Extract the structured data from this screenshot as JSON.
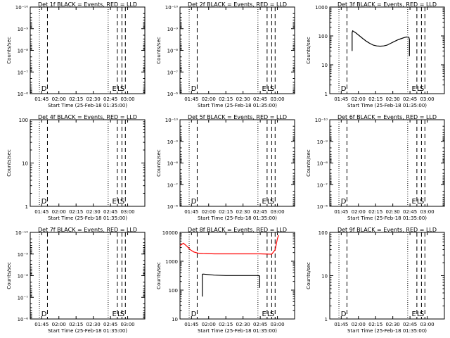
{
  "figure": {
    "background": "#ffffff",
    "axis_color": "#000000"
  },
  "chart_data": [
    {
      "type": "line",
      "title": "Det 1f BLACK = Events, RED = LLD",
      "xlabel": "Start Time (25-Feb-18 01:35:00)",
      "ylabel": "Counts/sec",
      "x_tick_labels": [
        "01:45",
        "02:00",
        "02:15",
        "02:30",
        "02:45",
        "03:00"
      ],
      "x_ticks_min": [
        10,
        25,
        40,
        55,
        70,
        85
      ],
      "xlim_min": [
        0,
        100
      ],
      "yscale": "log",
      "ylim": [
        1e-06,
        1e-10
      ],
      "y_tick_labels": [
        "10⁻⁶",
        "10⁻⁷",
        "10⁻⁸",
        "10⁻⁹",
        "10⁻¹⁰"
      ],
      "y_tick_values": [
        1e-06,
        1e-07,
        1e-08,
        1e-09,
        1e-10
      ],
      "vlines": [
        {
          "x": 8,
          "style": "dotted"
        },
        {
          "x": 15,
          "style": "dashed",
          "label": "D"
        },
        {
          "x": 68,
          "style": "dotted"
        },
        {
          "x": 76,
          "style": "dashed",
          "label": "E"
        },
        {
          "x": 80,
          "style": "dashed",
          "label": "L"
        },
        {
          "x": 83,
          "style": "dashed",
          "label": "S"
        }
      ],
      "series": []
    },
    {
      "type": "line",
      "title": "Det 2f BLACK = Events, RED = LLD",
      "xlabel": "Start Time (25-Feb-18 01:35:00)",
      "ylabel": "Counts/sec",
      "x_tick_labels": [
        "01:45",
        "02:00",
        "02:15",
        "02:30",
        "02:45",
        "03:00"
      ],
      "x_ticks_min": [
        10,
        25,
        40,
        55,
        70,
        85
      ],
      "xlim_min": [
        0,
        100
      ],
      "yscale": "log",
      "ylim": [
        1e-06,
        1e-10
      ],
      "y_tick_labels": [
        "10⁻⁶",
        "10⁻⁷",
        "10⁻⁸",
        "10⁻⁹",
        "10⁻¹⁰"
      ],
      "y_tick_values": [
        1e-06,
        1e-07,
        1e-08,
        1e-09,
        1e-10
      ],
      "vlines": [
        {
          "x": 8,
          "style": "dotted"
        },
        {
          "x": 15,
          "style": "dashed",
          "label": "D"
        },
        {
          "x": 68,
          "style": "dotted"
        },
        {
          "x": 76,
          "style": "dashed",
          "label": "E"
        },
        {
          "x": 80,
          "style": "dashed",
          "label": "L"
        },
        {
          "x": 83,
          "style": "dashed",
          "label": "S"
        }
      ],
      "series": []
    },
    {
      "type": "line",
      "title": "Det 3f BLACK = Events, RED = LLD",
      "xlabel": "Start Time (25-Feb-18 01:35:00)",
      "ylabel": "Counts/sec",
      "x_tick_labels": [
        "01:45",
        "02:00",
        "02:15",
        "02:30",
        "02:45",
        "03:00"
      ],
      "x_ticks_min": [
        10,
        25,
        40,
        55,
        70,
        85
      ],
      "xlim_min": [
        0,
        100
      ],
      "yscale": "log",
      "ylim": [
        1,
        1000
      ],
      "y_tick_labels": [
        "1",
        "10",
        "100",
        "1000"
      ],
      "y_tick_values": [
        1,
        10,
        100,
        1000
      ],
      "vlines": [
        {
          "x": 8,
          "style": "dotted"
        },
        {
          "x": 15,
          "style": "dashed",
          "label": "D"
        },
        {
          "x": 68,
          "style": "dotted"
        },
        {
          "x": 76,
          "style": "dashed",
          "label": "E"
        },
        {
          "x": 80,
          "style": "dashed",
          "label": "L"
        },
        {
          "x": 83,
          "style": "dashed",
          "label": "S"
        }
      ],
      "series": [
        {
          "color": "#000000",
          "x": [
            19.5,
            19.5,
            20,
            23,
            26,
            29,
            32,
            35,
            38,
            41,
            44,
            47,
            50,
            53,
            56,
            59,
            62,
            65,
            67,
            69,
            69.5,
            69.5
          ],
          "y": [
            30,
            130,
            150,
            125,
            100,
            80,
            65,
            55,
            48,
            45,
            44,
            45,
            48,
            55,
            63,
            72,
            80,
            88,
            92,
            90,
            75,
            20
          ]
        }
      ]
    },
    {
      "type": "line",
      "title": "Det 4f BLACK = Events, RED = LLD",
      "xlabel": "Start Time (25-Feb-18 01:35:00)",
      "ylabel": "Counts/sec",
      "x_tick_labels": [
        "01:45",
        "02:00",
        "02:15",
        "02:30",
        "02:45",
        "03:00"
      ],
      "x_ticks_min": [
        10,
        25,
        40,
        55,
        70,
        85
      ],
      "xlim_min": [
        0,
        100
      ],
      "yscale": "log",
      "ylim": [
        1,
        100
      ],
      "y_tick_labels": [
        "1",
        "10",
        "100"
      ],
      "y_tick_values": [
        1,
        10,
        100
      ],
      "vlines": [
        {
          "x": 8,
          "style": "dotted"
        },
        {
          "x": 15,
          "style": "dashed",
          "label": "D"
        },
        {
          "x": 68,
          "style": "dotted"
        },
        {
          "x": 76,
          "style": "dashed",
          "label": "E"
        },
        {
          "x": 80,
          "style": "dashed",
          "label": "L"
        },
        {
          "x": 83,
          "style": "dashed",
          "label": "S"
        }
      ],
      "series": []
    },
    {
      "type": "line",
      "title": "Det 5f BLACK = Events, RED = LLD",
      "xlabel": "Start Time (25-Feb-18 01:35:00)",
      "ylabel": "Counts/sec",
      "x_tick_labels": [
        "01:45",
        "02:00",
        "02:15",
        "02:30",
        "02:45",
        "03:00"
      ],
      "x_ticks_min": [
        10,
        25,
        40,
        55,
        70,
        85
      ],
      "xlim_min": [
        0,
        100
      ],
      "yscale": "log",
      "ylim": [
        1e-06,
        1e-10
      ],
      "y_tick_labels": [
        "10⁻⁶",
        "10⁻⁷",
        "10⁻⁸",
        "10⁻⁹",
        "10⁻¹⁰"
      ],
      "y_tick_values": [
        1e-06,
        1e-07,
        1e-08,
        1e-09,
        1e-10
      ],
      "vlines": [
        {
          "x": 8,
          "style": "dotted"
        },
        {
          "x": 15,
          "style": "dashed",
          "label": "D"
        },
        {
          "x": 68,
          "style": "dotted"
        },
        {
          "x": 76,
          "style": "dashed",
          "label": "E"
        },
        {
          "x": 80,
          "style": "dashed",
          "label": "L"
        },
        {
          "x": 83,
          "style": "dashed",
          "label": "S"
        }
      ],
      "series": []
    },
    {
      "type": "line",
      "title": "Det 6f BLACK = Events, RED = LLD",
      "xlabel": "Start Time (25-Feb-18 01:35:00)",
      "ylabel": "Counts/sec",
      "x_tick_labels": [
        "01:45",
        "02:00",
        "02:15",
        "02:30",
        "02:45",
        "03:00"
      ],
      "x_ticks_min": [
        10,
        25,
        40,
        55,
        70,
        85
      ],
      "xlim_min": [
        0,
        100
      ],
      "yscale": "log",
      "ylim": [
        1e-06,
        1e-10
      ],
      "y_tick_labels": [
        "10⁻⁶",
        "10⁻⁷",
        "10⁻⁸",
        "10⁻⁹",
        "10⁻¹⁰"
      ],
      "y_tick_values": [
        1e-06,
        1e-07,
        1e-08,
        1e-09,
        1e-10
      ],
      "vlines": [
        {
          "x": 8,
          "style": "dotted"
        },
        {
          "x": 15,
          "style": "dashed",
          "label": "D"
        },
        {
          "x": 68,
          "style": "dotted"
        },
        {
          "x": 76,
          "style": "dashed",
          "label": "E"
        },
        {
          "x": 80,
          "style": "dashed",
          "label": "L"
        },
        {
          "x": 83,
          "style": "dashed",
          "label": "S"
        }
      ],
      "series": []
    },
    {
      "type": "line",
      "title": "Det 7f BLACK = Events, RED = LLD",
      "xlabel": "Start Time (25-Feb-18 01:35:00)",
      "ylabel": "Counts/sec",
      "x_tick_labels": [
        "01:45",
        "02:00",
        "02:15",
        "02:30",
        "02:45",
        "03:00"
      ],
      "x_ticks_min": [
        10,
        25,
        40,
        55,
        70,
        85
      ],
      "xlim_min": [
        0,
        100
      ],
      "yscale": "log",
      "ylim": [
        1e-06,
        1e-10
      ],
      "y_tick_labels": [
        "10⁻⁶",
        "10⁻⁷",
        "10⁻⁸",
        "10⁻⁹",
        "10⁻¹⁰"
      ],
      "y_tick_values": [
        1e-06,
        1e-07,
        1e-08,
        1e-09,
        1e-10
      ],
      "vlines": [
        {
          "x": 8,
          "style": "dotted"
        },
        {
          "x": 15,
          "style": "dashed",
          "label": "D"
        },
        {
          "x": 68,
          "style": "dotted"
        },
        {
          "x": 76,
          "style": "dashed",
          "label": "E"
        },
        {
          "x": 80,
          "style": "dashed",
          "label": "L"
        },
        {
          "x": 83,
          "style": "dashed",
          "label": "S"
        }
      ],
      "series": []
    },
    {
      "type": "line",
      "title": "Det 8f BLACK = Events, RED = LLD",
      "xlabel": "Start Time (25-Feb-18 01:35:00)",
      "ylabel": "Counts/sec",
      "x_tick_labels": [
        "01:45",
        "02:00",
        "02:15",
        "02:30",
        "02:45",
        "03:00"
      ],
      "x_ticks_min": [
        10,
        25,
        40,
        55,
        70,
        85
      ],
      "xlim_min": [
        0,
        100
      ],
      "yscale": "log",
      "ylim": [
        10,
        10000
      ],
      "y_tick_labels": [
        "10",
        "100",
        "1000",
        "10000"
      ],
      "y_tick_values": [
        10,
        100,
        1000,
        10000
      ],
      "vlines": [
        {
          "x": 8,
          "style": "dotted"
        },
        {
          "x": 15,
          "style": "dashed",
          "label": "D"
        },
        {
          "x": 68,
          "style": "dotted"
        },
        {
          "x": 76,
          "style": "dashed",
          "label": "E"
        },
        {
          "x": 80,
          "style": "dashed",
          "label": "L"
        },
        {
          "x": 83,
          "style": "dashed",
          "label": "S"
        }
      ],
      "series": [
        {
          "color": "#000000",
          "x": [
            19.5,
            19.5,
            20,
            30,
            40,
            50,
            60,
            68,
            69.5,
            69.5
          ],
          "y": [
            60,
            350,
            360,
            330,
            320,
            320,
            320,
            320,
            310,
            120
          ]
        },
        {
          "color": "#ff0000",
          "x": [
            0,
            3,
            6,
            9,
            12,
            16,
            20,
            30,
            40,
            50,
            60,
            70,
            80,
            83,
            85,
            86
          ],
          "y": [
            3500,
            4200,
            3300,
            2500,
            2100,
            1900,
            1850,
            1800,
            1800,
            1800,
            1800,
            1800,
            1750,
            2500,
            6000,
            8000
          ]
        }
      ]
    },
    {
      "type": "line",
      "title": "Det 9f BLACK = Events, RED = LLD",
      "xlabel": "Start Time (25-Feb-18 01:35:00)",
      "ylabel": "Counts/sec",
      "x_tick_labels": [
        "01:45",
        "02:00",
        "02:15",
        "02:30",
        "02:45",
        "03:00"
      ],
      "x_ticks_min": [
        10,
        25,
        40,
        55,
        70,
        85
      ],
      "xlim_min": [
        0,
        100
      ],
      "yscale": "log",
      "ylim": [
        1,
        100
      ],
      "y_tick_labels": [
        "1",
        "10",
        "100"
      ],
      "y_tick_values": [
        1,
        10,
        100
      ],
      "vlines": [
        {
          "x": 8,
          "style": "dotted"
        },
        {
          "x": 15,
          "style": "dashed",
          "label": "D"
        },
        {
          "x": 68,
          "style": "dotted"
        },
        {
          "x": 76,
          "style": "dashed",
          "label": "E"
        },
        {
          "x": 80,
          "style": "dashed",
          "label": "L"
        },
        {
          "x": 83,
          "style": "dashed",
          "label": "S"
        }
      ],
      "series": []
    }
  ]
}
